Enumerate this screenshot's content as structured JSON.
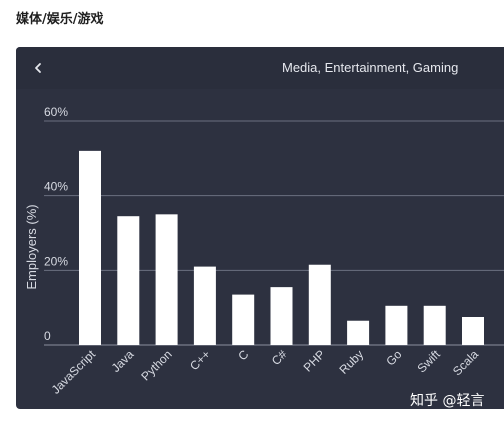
{
  "page": {
    "heading": "媒体/娱乐/游戏"
  },
  "panel": {
    "title": "Media, Entertainment, Gaming",
    "back_icon": "chevron-left-icon"
  },
  "watermark": "知乎 @轻言",
  "colors": {
    "panel_bg": "#2d3140",
    "bar": "#ffffff",
    "grid": "#6b7080",
    "text": "#d7dae2"
  },
  "chart_data": {
    "type": "bar",
    "title": "Media, Entertainment, Gaming",
    "ylabel": "Employers (%)",
    "xlabel": "",
    "ylim": [
      0,
      60
    ],
    "yticks": [
      0,
      20,
      40,
      60
    ],
    "ytick_labels": [
      "0",
      "20%",
      "40%",
      "60%"
    ],
    "grid": true,
    "categories": [
      "JavaScript",
      "Java",
      "Python",
      "C++",
      "C",
      "C#",
      "PHP",
      "Ruby",
      "Go",
      "Swift",
      "Scala"
    ],
    "values": [
      52,
      34.5,
      35,
      21,
      13.5,
      15.5,
      21.5,
      6.5,
      10.5,
      10.5,
      7.5
    ]
  }
}
